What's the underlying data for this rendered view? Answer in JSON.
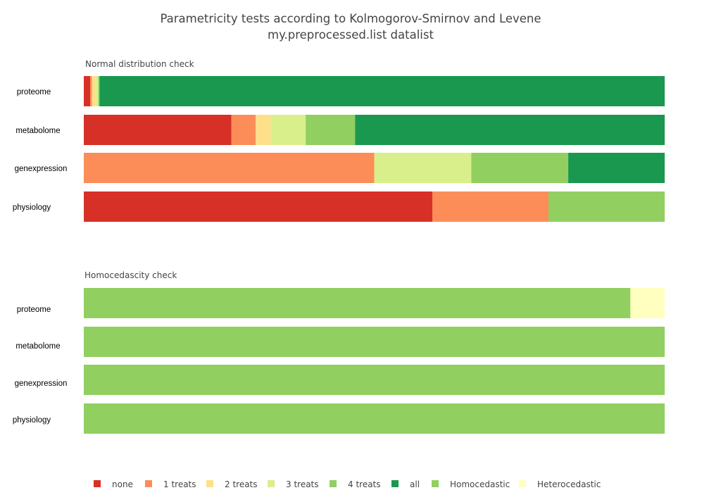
{
  "chart_data": {
    "type": "bar",
    "orientation": "horizontal",
    "stacked": true,
    "normalized": true,
    "title_lines": [
      "Parametricity tests according to Kolmogorov-Smirnov and Levene",
      "my.preprocessed.list datalist"
    ],
    "panels": [
      {
        "subtitle": "Normal distribution check",
        "categories": [
          "proteome",
          "metabolome",
          "genexpression",
          "physiology"
        ],
        "series": [
          {
            "name": "none",
            "color": "#d73027",
            "values": [
              0.011,
              0.254,
              0.0,
              0.6
            ]
          },
          {
            "name": "1 treats",
            "color": "#fc8d59",
            "values": [
              0.003,
              0.042,
              0.5,
              0.2
            ]
          },
          {
            "name": "2 treats",
            "color": "#fee08b",
            "values": [
              0.007,
              0.026,
              0.0,
              0.0
            ]
          },
          {
            "name": "3 treats",
            "color": "#d9ef8b",
            "values": [
              0.004,
              0.06,
              0.167,
              0.0
            ]
          },
          {
            "name": "4 treats",
            "color": "#91cf60",
            "values": [
              0.002,
              0.085,
              0.167,
              0.2
            ]
          },
          {
            "name": "all",
            "color": "#1a9850",
            "values": [
              0.973,
              0.533,
              0.166,
              0.0
            ]
          }
        ]
      },
      {
        "subtitle": "Homocedascity check",
        "categories": [
          "proteome",
          "metabolome",
          "genexpression",
          "physiology"
        ],
        "series": [
          {
            "name": "Homocedastic",
            "color": "#91cf60",
            "values": [
              0.941,
              1.0,
              1.0,
              1.0
            ]
          },
          {
            "name": "Heterocedastic",
            "color": "#ffffbf",
            "values": [
              0.059,
              0.0,
              0.0,
              0.0
            ]
          }
        ]
      }
    ],
    "legend": [
      {
        "name": "none",
        "color": "#d73027"
      },
      {
        "name": "1 treats",
        "color": "#fc8d59"
      },
      {
        "name": "2 treats",
        "color": "#fee08b"
      },
      {
        "name": "3 treats",
        "color": "#d9ef8b"
      },
      {
        "name": "4 treats",
        "color": "#91cf60"
      },
      {
        "name": "all",
        "color": "#1a9850"
      },
      {
        "name": "Homocedastic",
        "color": "#91cf60"
      },
      {
        "name": "Heterocedastic",
        "color": "#ffffbf"
      }
    ],
    "legend_position": "bottom",
    "xlim": [
      0,
      1
    ],
    "grid": false
  }
}
